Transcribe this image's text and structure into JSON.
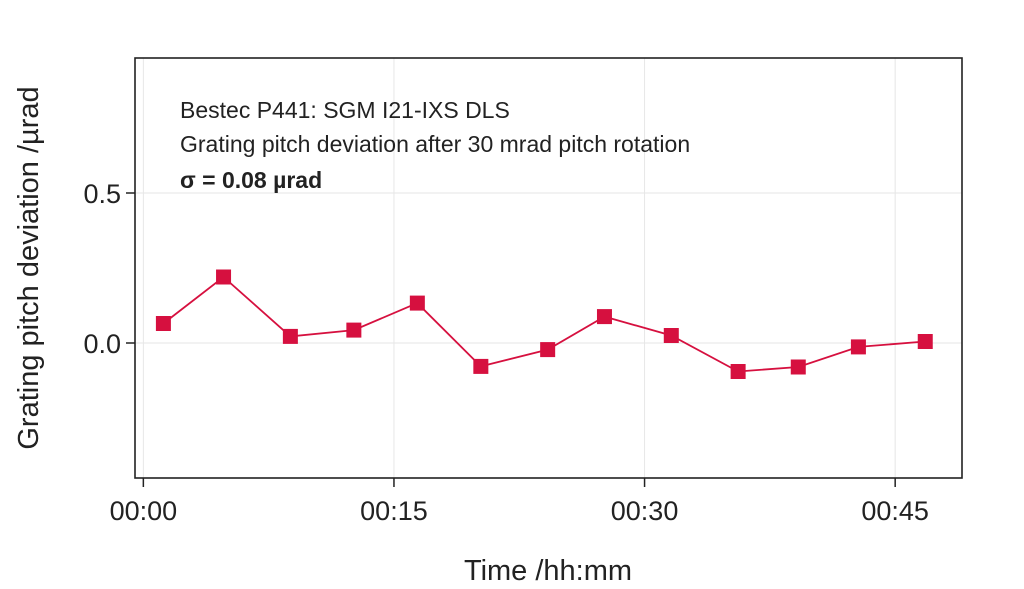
{
  "chart_data": {
    "type": "line",
    "title": "",
    "xlabel": "Time /hh:mm",
    "ylabel": "Grating pitch deviation /µrad",
    "xlim": [
      -0.5,
      49
    ],
    "ylim": [
      -0.45,
      0.95
    ],
    "x_ticks": [
      {
        "value": 0,
        "label": "00:00"
      },
      {
        "value": 15,
        "label": "00:15"
      },
      {
        "value": 30,
        "label": "00:30"
      },
      {
        "value": 45,
        "label": "00:45"
      }
    ],
    "y_ticks": [
      {
        "value": 0.0,
        "label": "0.0"
      },
      {
        "value": 0.5,
        "label": "0.5"
      }
    ],
    "grid": true,
    "annotations": [
      "Bestec P441: SGM I21-IXS DLS",
      "Grating pitch deviation after 30 mrad pitch rotation",
      "σ = 0.08 µrad"
    ],
    "series": [
      {
        "color": "#d6103f",
        "marker": "square",
        "x": [
          1.2,
          4.8,
          8.8,
          12.6,
          16.4,
          20.2,
          24.2,
          27.6,
          31.6,
          35.6,
          39.2,
          42.8,
          46.8
        ],
        "y": [
          0.065,
          0.22,
          0.022,
          0.043,
          0.133,
          -0.078,
          -0.022,
          0.088,
          0.025,
          -0.095,
          -0.08,
          -0.013,
          0.005
        ]
      }
    ]
  }
}
